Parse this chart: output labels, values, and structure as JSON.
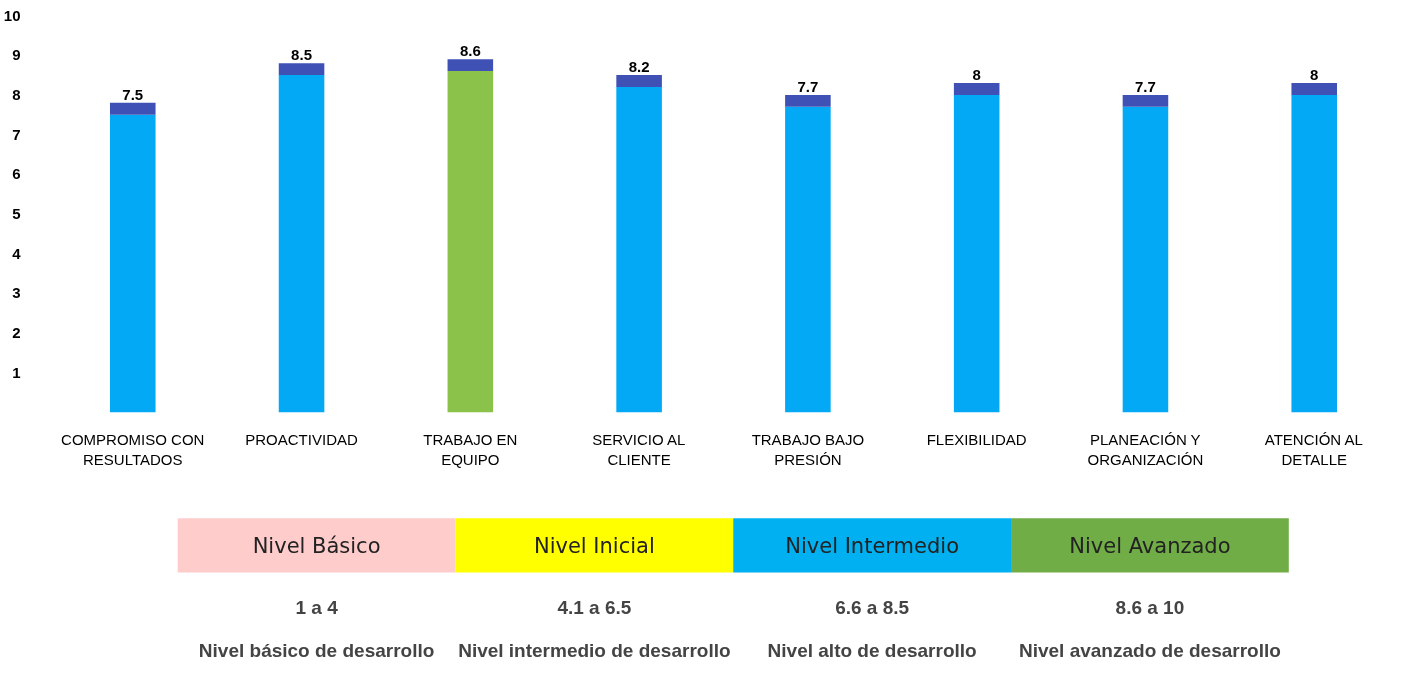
{
  "chart_data": [
    {
      "type": "bar",
      "stacked": true,
      "categories": [
        "COMPROMISO CON RESULTADOS",
        "PROACTIVIDAD",
        "TRABAJO EN EQUIPO",
        "SERVICIO AL CLIENTE",
        "TRABAJO BAJO PRESIÓN",
        "FLEXIBILIDAD",
        "PLANEACIÓN Y ORGANIZACIÓN",
        "ATENCIÓN AL DETALLE"
      ],
      "series": [
        {
          "colors": [
            "#03a9f4",
            "#03a9f4",
            "#8bc34a",
            "#03a9f4",
            "#03a9f4",
            "#03a9f4",
            "#03a9f4",
            "#03a9f4"
          ],
          "values": [
            7.5,
            8.5,
            8.6,
            8.2,
            7.7,
            8,
            7.7,
            8
          ],
          "value_labels": [
            "7.5",
            "8.5",
            "8.6",
            "8.2",
            "7.7",
            "8",
            "7.7",
            "8"
          ]
        },
        {
          "color": "#3f51b5",
          "values": [
            0.3,
            0.3,
            0.3,
            0.3,
            0.3,
            0.3,
            0.3,
            0.3
          ]
        }
      ],
      "ylim": [
        0,
        10
      ],
      "yticks": [
        1,
        2,
        3,
        4,
        5,
        6,
        7,
        8,
        9,
        10
      ],
      "grid": false
    },
    {
      "type": "other",
      "categories": [
        "Nivel Básico",
        "Nivel Inicial",
        "Nivel Intermedio",
        "Nivel Avanzado"
      ],
      "colors": [
        "#ffcccc",
        "#ffff00",
        "#00b0f0",
        "#70ad47"
      ],
      "annotations": [
        "1 a 4",
        "Nivel básico de desarrollo",
        "4.1 a 6.5",
        "Nivel intermedio de desarrollo",
        "6.6 a 8.5",
        "Nivel alto de desarrollo",
        "8.6 a 10",
        "Nivel avanzado de desarrollo"
      ]
    }
  ]
}
